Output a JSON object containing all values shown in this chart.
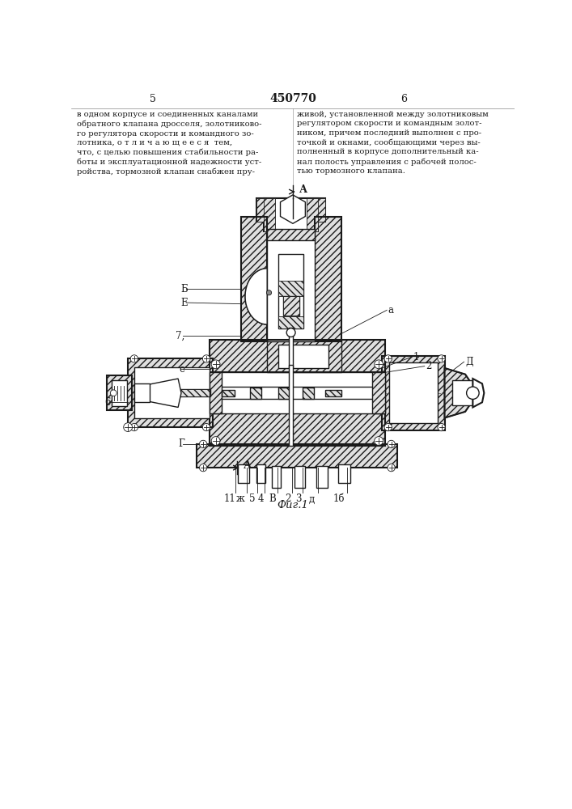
{
  "title": "450770",
  "page_left": "5",
  "page_right": "6",
  "fig_caption": "Фиг.1",
  "text_left": "в одном корпусе и соединенных каналами\nобратного клапана дросселя, золотниково-\nго регулятора скорости и командного зо-\nлотника, о т л и ч а ю щ е е с я  тем,\nчто, с целью повышения стабильности ра-\nботы и эксплуатационной надежности уст-\nройства, тормозной клапан снабжен пру-",
  "text_right": "живой, установленной между золотниковым\nрегулятором скорости и командным золот-\nником, причем последний выполнен с про-\nточкой и окнами, сообщающими через вы-\nполненный в корпусе дополнительный ка-\nнал полость управления с рабочей полос-\nтью тормозного клапана.",
  "bg_color": "#ffffff",
  "lc": "#1a1a1a",
  "lw": 1.0,
  "hatch_density": 4
}
